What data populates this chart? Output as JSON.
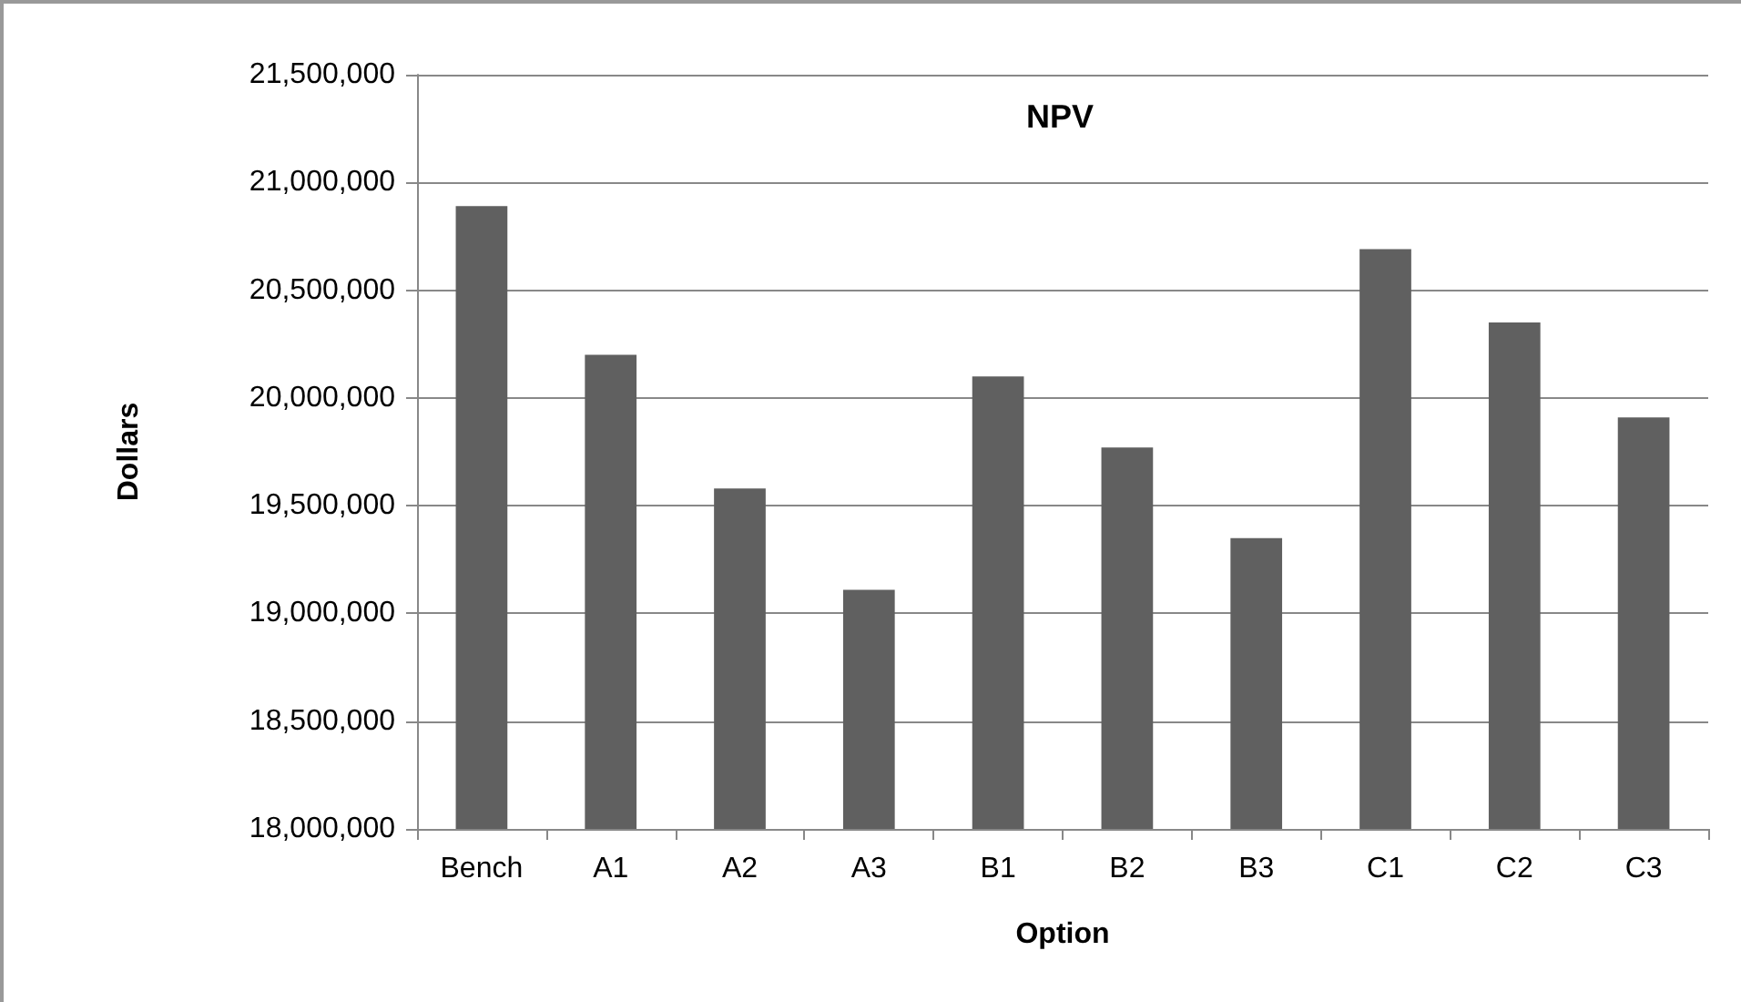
{
  "chart_data": {
    "type": "bar",
    "title": "NPV",
    "xlabel": "Option",
    "ylabel": "Dollars",
    "categories": [
      "Bench",
      "A1",
      "A2",
      "A3",
      "B1",
      "B2",
      "B3",
      "C1",
      "C2",
      "C3"
    ],
    "values": [
      20890000,
      20200000,
      19580000,
      19110000,
      20100000,
      19770000,
      19350000,
      20690000,
      20350000,
      19910000
    ],
    "color": "#606060",
    "ylim": [
      18000000,
      21500000
    ],
    "yticks": [
      {
        "value": 18000000,
        "label": "18,000,000"
      },
      {
        "value": 18500000,
        "label": "18,500,000"
      },
      {
        "value": 19000000,
        "label": "19,000,000"
      },
      {
        "value": 19500000,
        "label": "19,500,000"
      },
      {
        "value": 20000000,
        "label": "20,000,000"
      },
      {
        "value": 20500000,
        "label": "20,500,000"
      },
      {
        "value": 21000000,
        "label": "21,000,000"
      },
      {
        "value": 21500000,
        "label": "21,500,000"
      }
    ],
    "grid": "y"
  }
}
